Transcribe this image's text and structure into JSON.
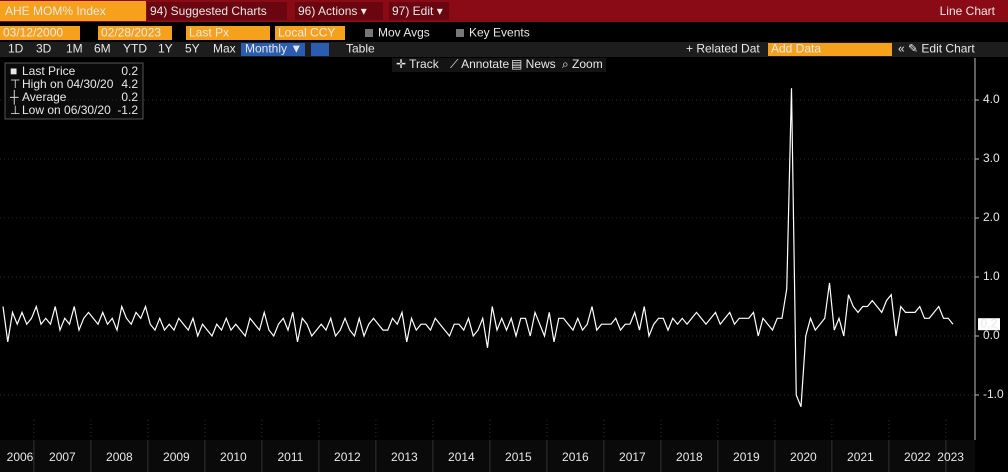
{
  "ui": {
    "ticker": "AHE MOM% Index",
    "menu": [
      "94) Suggested Charts",
      "96) Actions ▾",
      "97) Edit ▾"
    ],
    "chart_kind": "Line Chart",
    "start_date": "03/12/2000",
    "end_date": "02/28/2023",
    "field": "Last Px",
    "currency": "Local CCY",
    "toggles": [
      "Mov Avgs",
      "Key Events"
    ],
    "ranges": [
      "1D",
      "3D",
      "1M",
      "6M",
      "YTD",
      "1Y",
      "5Y",
      "Max"
    ],
    "period": "Monthly ▼",
    "table": "Table",
    "related": "+ Related Dat",
    "add_data": "Add Data",
    "edit_chart": "« ✎ Edit Chart",
    "tools": [
      "✛ Track",
      "⟋ Annotate",
      "▤ News",
      "⌕ Zoom"
    ]
  },
  "chart_data": {
    "type": "line",
    "color": "#ffffff",
    "grid": true,
    "stats": [
      {
        "label": "Last Price",
        "value": 0.2
      },
      {
        "label": "High on 04/30/20",
        "value": 4.2
      },
      {
        "label": "Average",
        "value": 0.2
      },
      {
        "label": "Low on 06/30/20",
        "value": -1.2
      }
    ],
    "ylim": [
      -1.7,
      4.7
    ],
    "yticks": [
      {
        "value": -1,
        "label": "-1.0"
      },
      {
        "value": 0,
        "label": "0.0"
      },
      {
        "value": 1,
        "label": "1.0"
      },
      {
        "value": 2,
        "label": "2.0"
      },
      {
        "value": 3,
        "label": "3.0"
      },
      {
        "value": 4,
        "label": "4.0"
      }
    ],
    "categories": [
      "2006",
      null,
      null,
      null,
      null,
      null,
      null,
      "2007",
      null,
      null,
      null,
      null,
      null,
      null,
      null,
      null,
      null,
      null,
      null,
      "2008",
      null,
      null,
      null,
      null,
      null,
      null,
      null,
      null,
      null,
      null,
      null,
      "2009",
      null,
      null,
      null,
      null,
      null,
      null,
      null,
      null,
      null,
      null,
      null,
      "2010",
      null,
      null,
      null,
      null,
      null,
      null,
      null,
      null,
      null,
      null,
      null,
      "2011",
      null,
      null,
      null,
      null,
      null,
      null,
      null,
      null,
      null,
      null,
      null,
      "2012",
      null,
      null,
      null,
      null,
      null,
      null,
      null,
      null,
      null,
      null,
      null,
      "2013",
      null,
      null,
      null,
      null,
      null,
      null,
      null,
      null,
      null,
      null,
      null,
      "2014",
      null,
      null,
      null,
      null,
      null,
      null,
      null,
      null,
      null,
      null,
      null,
      "2015",
      null,
      null,
      null,
      null,
      null,
      null,
      null,
      null,
      null,
      null,
      null,
      "2016",
      null,
      null,
      null,
      null,
      null,
      null,
      null,
      null,
      null,
      null,
      null,
      "2017",
      null,
      null,
      null,
      null,
      null,
      null,
      null,
      null,
      null,
      null,
      null,
      "2018",
      null,
      null,
      null,
      null,
      null,
      null,
      null,
      null,
      null,
      null,
      null,
      "2019",
      null,
      null,
      null,
      null,
      null,
      null,
      null,
      null,
      null,
      null,
      null,
      "2020",
      null,
      null,
      null,
      null,
      null,
      null,
      null,
      null,
      null,
      null,
      null,
      "2021",
      null,
      null,
      null,
      null,
      null,
      null,
      null,
      null,
      null,
      null,
      null,
      "2022",
      null,
      null,
      null,
      null,
      null,
      null,
      null,
      null,
      null,
      null,
      null,
      "2023",
      null
    ],
    "values": [
      0.5,
      -0.1,
      0.4,
      0.2,
      0.4,
      0.2,
      0.3,
      0.5,
      0.2,
      0.3,
      0.2,
      0.5,
      0.1,
      0.3,
      0.2,
      0.5,
      0.1,
      0.3,
      0.4,
      0.3,
      0.2,
      0.4,
      0.2,
      0.3,
      0.1,
      0.5,
      0.3,
      0.2,
      0.4,
      0.3,
      0.5,
      0.2,
      0.1,
      0.3,
      0.1,
      0.2,
      0.1,
      0.3,
      0.2,
      0.1,
      0.3,
      0.0,
      0.2,
      0.1,
      0.0,
      0.2,
      0.1,
      0.3,
      0.1,
      0.2,
      0.1,
      0.0,
      0.3,
      0.2,
      0.1,
      0.4,
      0.1,
      0.0,
      0.2,
      0.3,
      0.1,
      0.4,
      -0.1,
      0.3,
      0.2,
      0.0,
      0.1,
      0.2,
      0.1,
      0.3,
      0.0,
      0.1,
      0.3,
      0.1,
      0.0,
      0.3,
      0.0,
      0.2,
      0.3,
      0.2,
      0.1,
      0.1,
      0.3,
      0.2,
      0.4,
      -0.1,
      0.3,
      0.1,
      0.2,
      0.2,
      0.1,
      0.3,
      0.2,
      0.1,
      0.0,
      0.2,
      0.2,
      0.1,
      0.3,
      0.0,
      0.1,
      0.3,
      -0.2,
      0.5,
      0.1,
      0.3,
      0.1,
      0.3,
      0.0,
      0.3,
      0.3,
      0.0,
      0.4,
      0.2,
      0.0,
      0.4,
      -0.1,
      0.3,
      0.3,
      0.2,
      0.1,
      0.3,
      0.1,
      0.2,
      0.5,
      0.1,
      0.2,
      0.2,
      0.2,
      0.3,
      0.1,
      0.2,
      0.2,
      0.4,
      0.1,
      0.5,
      0.0,
      0.2,
      0.3,
      0.3,
      0.1,
      0.3,
      0.2,
      0.3,
      0.2,
      0.3,
      0.4,
      0.3,
      0.2,
      0.3,
      0.4,
      0.2,
      0.3,
      0.4,
      0.2,
      0.3,
      0.3,
      0.3,
      0.4,
      0.0,
      0.3,
      0.2,
      0.1,
      0.3,
      0.3,
      0.8,
      4.2,
      -1.0,
      -1.2,
      0.0,
      0.3,
      0.1,
      0.2,
      0.3,
      0.9,
      0.1,
      0.3,
      0.0,
      0.7,
      0.5,
      0.4,
      0.5,
      0.5,
      0.6,
      0.5,
      0.4,
      0.6,
      0.7,
      0.0,
      0.5,
      0.4,
      0.4,
      0.4,
      0.5,
      0.3,
      0.3,
      0.4,
      0.5,
      0.3,
      0.3,
      0.2
    ]
  }
}
